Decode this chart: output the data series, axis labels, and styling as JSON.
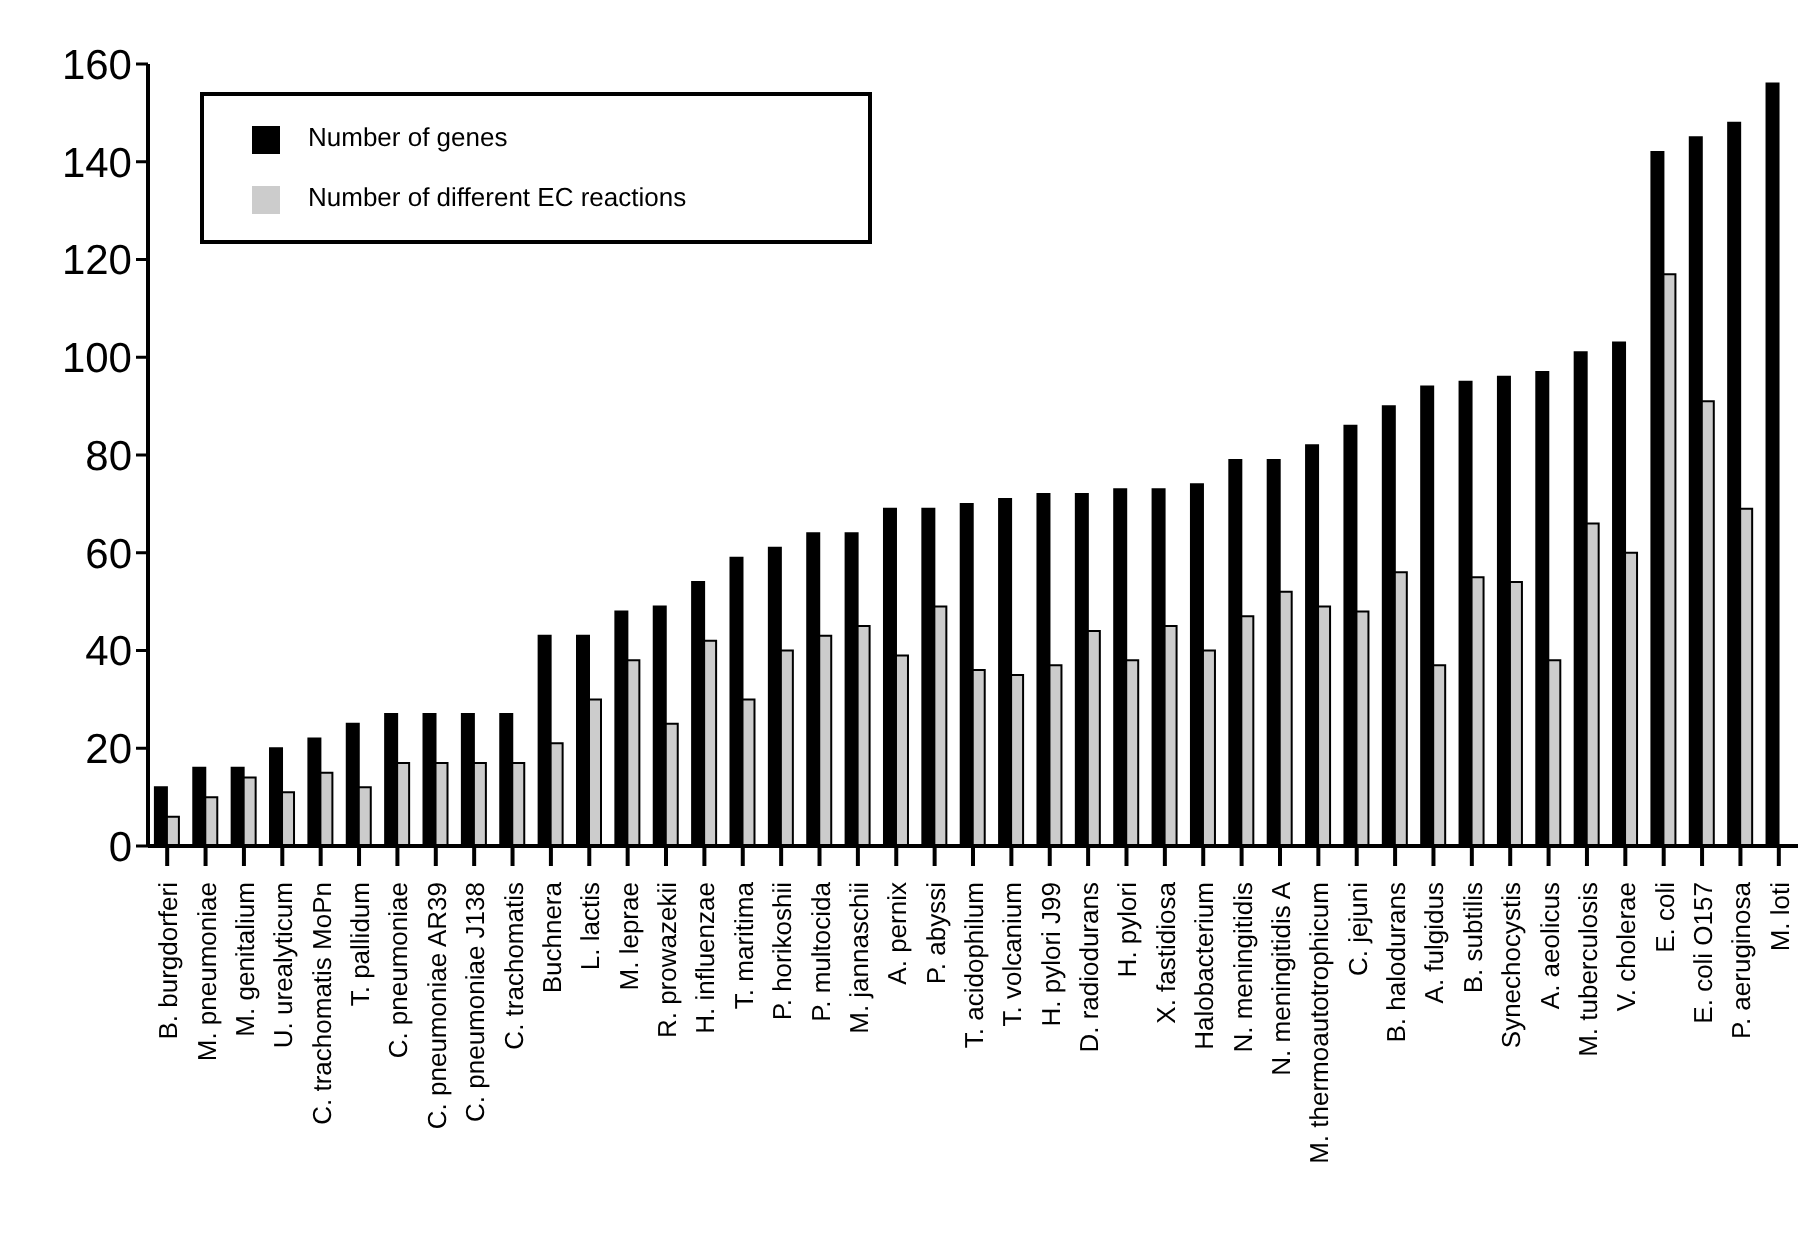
{
  "chart_data": {
    "type": "bar",
    "categories": [
      "B. burgdorferi",
      "M. pneumoniae",
      "M. genitalium",
      "U. urealyticum",
      "C. trachomatis MoPn",
      "T. pallidum",
      "C. pneumoniae",
      "C. pneumoniae AR39",
      "C. pneumoniae J138",
      "C. trachomatis",
      "Buchnera",
      "L. lactis",
      "M. leprae",
      "R. prowazekii",
      "H. influenzae",
      "T. maritima",
      "P. horikoshii",
      "P. multocida",
      "M. jannaschii",
      "A. pernix",
      "P. abyssi",
      "T. acidophilum",
      "T. volcanium",
      "H. pylori J99",
      "D. radiodurans",
      "H. pylori",
      "X. fastidiosa",
      "Halobacterium",
      "N. meningitidis",
      "N. meningitidis A",
      "M. thermoautotrophicum",
      "C. jejuni",
      "B. halodurans",
      "A. fulgidus",
      "B. subtilis",
      "Synechocystis",
      "A. aeolicus",
      "M. tuberculosis",
      "V. cholerae",
      "E. coli",
      "E. coli O157",
      "P. aeruginosa",
      "M. loti"
    ],
    "series": [
      {
        "name": "Number of genes",
        "color": "#000000",
        "values": [
          12,
          16,
          16,
          20,
          22,
          25,
          27,
          27,
          27,
          27,
          43,
          43,
          48,
          49,
          54,
          59,
          61,
          64,
          64,
          69,
          69,
          70,
          71,
          72,
          72,
          73,
          73,
          74,
          79,
          79,
          82,
          86,
          90,
          94,
          95,
          96,
          97,
          101,
          103,
          142,
          145,
          148,
          156
        ]
      },
      {
        "name": "Number of different EC reactions",
        "color": "#cccccc",
        "values": [
          6,
          10,
          14,
          11,
          15,
          12,
          17,
          17,
          17,
          17,
          21,
          30,
          38,
          25,
          42,
          30,
          40,
          43,
          45,
          39,
          49,
          36,
          35,
          37,
          44,
          38,
          45,
          40,
          47,
          52,
          49,
          48,
          56,
          37,
          55,
          54,
          38,
          66,
          60,
          117,
          91,
          69,
          null
        ]
      }
    ],
    "ylim": [
      0,
      160
    ],
    "yticks": [
      0,
      20,
      40,
      60,
      80,
      100,
      120,
      140,
      160
    ],
    "grid": false,
    "legend": "top left"
  }
}
